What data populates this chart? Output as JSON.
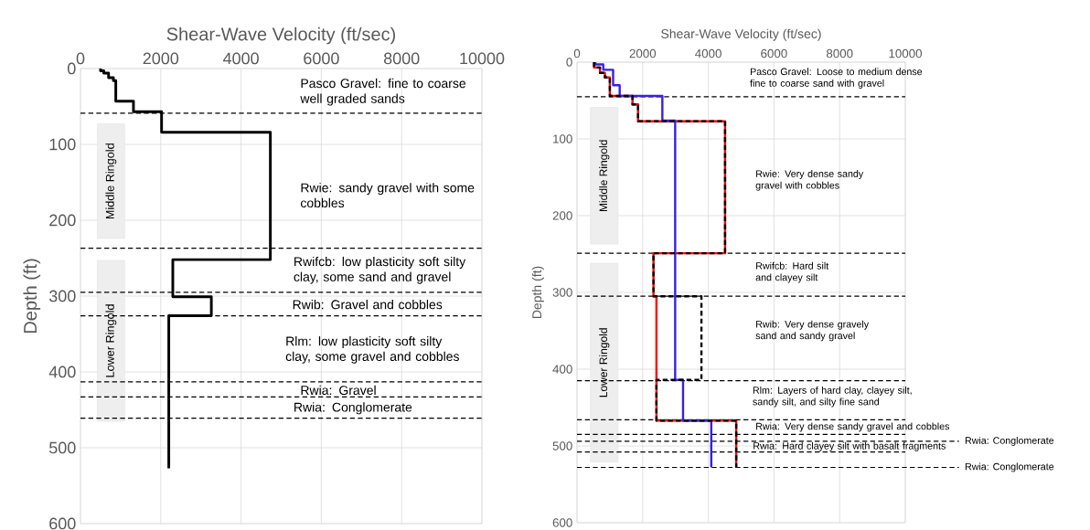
{
  "chart_data": [
    {
      "type": "line",
      "xlabel": "Shear-Wave Velocity (ft/sec)",
      "ylabel": "Depth (ft)",
      "xlim": [
        0,
        10000
      ],
      "xticks": [
        0,
        2000,
        4000,
        6000,
        8000,
        10000
      ],
      "ylim": [
        600,
        0
      ],
      "yticks": [
        0,
        100,
        200,
        300,
        400,
        500,
        600
      ],
      "grid": true,
      "series": [
        {
          "color": "#000000",
          "line_style": "solid",
          "x": [
            500,
            500,
            580,
            580,
            700,
            700,
            820,
            820,
            880,
            880,
            1320,
            1320,
            2020,
            2020,
            4730,
            4730,
            2300,
            2300,
            3260,
            3260,
            2200,
            2200
          ],
          "values": [
            0,
            3,
            3,
            6,
            6,
            12,
            12,
            16,
            16,
            43,
            43,
            57,
            57,
            84,
            84,
            252,
            252,
            301,
            301,
            326,
            326,
            527
          ]
        }
      ],
      "ref_lines": [
        {
          "axis": "y",
          "value": 59,
          "line_style": "dashed"
        },
        {
          "axis": "y",
          "value": 237,
          "line_style": "dashed"
        },
        {
          "axis": "y",
          "value": 295,
          "line_style": "dashed"
        },
        {
          "axis": "y",
          "value": 326,
          "line_style": "dashed"
        },
        {
          "axis": "y",
          "value": 413,
          "line_style": "dashed"
        },
        {
          "axis": "y",
          "value": 433,
          "line_style": "dashed"
        },
        {
          "axis": "y",
          "value": 461,
          "line_style": "dashed"
        }
      ],
      "bands": [
        {
          "axis": "y",
          "from": 73,
          "to": 224,
          "label": "Middle Ringold",
          "color": "#eeeeee"
        },
        {
          "axis": "y",
          "from": 253,
          "to": 465,
          "label": "Lower Ringold",
          "color": "#eeeeee"
        }
      ],
      "annotations": [
        "Pasco Gravel:  fine to coarse well graded sands",
        "Rwie: sandy gravel with some cobbles",
        "Rwifcb: low plasticity soft silty clay, some sand and gravel",
        "Rwib: Gravel and cobbles",
        "Rlm: low plasticity soft silty clay, some gravel and cobbles",
        "Rwia: Gravel",
        "Rwia: Conglomerate"
      ]
    },
    {
      "type": "line",
      "xlabel": "Shear-Wave Velocity (ft/sec)",
      "ylabel": "Depth (ft)",
      "xlim": [
        0,
        10000
      ],
      "xticks": [
        0,
        2000,
        4000,
        6000,
        8000,
        10000
      ],
      "ylim": [
        600,
        0
      ],
      "yticks": [
        0,
        100,
        200,
        300,
        400,
        500,
        600
      ],
      "grid": true,
      "series": [
        {
          "color": "#ff0000",
          "line_style": "solid",
          "x": [
            520,
            520,
            700,
            700,
            850,
            850,
            1000,
            1000,
            1690,
            1690,
            1860,
            1860,
            4510,
            4510,
            2330,
            2330,
            2420,
            2420,
            4850,
            4850
          ],
          "values": [
            0,
            7,
            7,
            14,
            14,
            20,
            20,
            44,
            44,
            55,
            55,
            77,
            77,
            249,
            249,
            305,
            305,
            467,
            467,
            528
          ]
        },
        {
          "color": "#3a20e0",
          "line_style": "solid",
          "x": [
            560,
            560,
            800,
            800,
            1100,
            1100,
            1300,
            1300,
            2600,
            2600,
            2990,
            2990,
            3230,
            3230,
            4090,
            4090
          ],
          "values": [
            0,
            3,
            3,
            10,
            10,
            30,
            30,
            44,
            44,
            76,
            76,
            414,
            414,
            467,
            467,
            528
          ]
        },
        {
          "color": "#000000",
          "line_style": "dashed",
          "x": [
            520,
            520,
            700,
            700,
            850,
            850,
            1000,
            1000,
            1690,
            1690,
            1860,
            1860,
            4510,
            4510,
            2330,
            2330,
            3790,
            3790,
            2420,
            2420,
            4850,
            4850
          ],
          "values": [
            0,
            7,
            7,
            14,
            14,
            20,
            20,
            44,
            44,
            55,
            55,
            77,
            77,
            249,
            249,
            305,
            305,
            414,
            414,
            467,
            467,
            528
          ]
        }
      ],
      "ref_lines": [
        {
          "axis": "y",
          "value": 45,
          "line_style": "dashed"
        },
        {
          "axis": "y",
          "value": 249,
          "line_style": "dashed"
        },
        {
          "axis": "y",
          "value": 305,
          "line_style": "dashed"
        },
        {
          "axis": "y",
          "value": 415,
          "line_style": "dashed"
        },
        {
          "axis": "y",
          "value": 466,
          "line_style": "dashed"
        },
        {
          "axis": "y",
          "value": 485,
          "line_style": "dashed"
        },
        {
          "axis": "y",
          "value": 494,
          "line_style": "dashed",
          "label": "Rwia: Conglomerate"
        },
        {
          "axis": "y",
          "value": 508,
          "line_style": "dashed"
        },
        {
          "axis": "y",
          "value": 528,
          "line_style": "dashed",
          "label": "Rwia: Conglomerate"
        }
      ],
      "bands": [
        {
          "axis": "y",
          "from": 59,
          "to": 237,
          "label": "Middle Ringold",
          "color": "#eeeeee"
        },
        {
          "axis": "y",
          "from": 262,
          "to": 521,
          "label": "Lower Ringold",
          "color": "#eeeeee"
        }
      ],
      "annotations": [
        "Pasco Gravel: Loose to medium dense fine to coarse sand with gravel",
        "Rwie: Very dense sandy gravel with cobbles",
        "Rwifcb: Hard silt and clayey silt",
        "Rwib: Very dense gravely sand and sandy gravel",
        "Rlm: Layers of hard clay, clayey silt, sandy silt, and silty fine sand",
        "Rwia: Very dense sandy gravel and cobbles",
        "Rwia: Hard clayey silt with basalt fragments"
      ]
    }
  ]
}
